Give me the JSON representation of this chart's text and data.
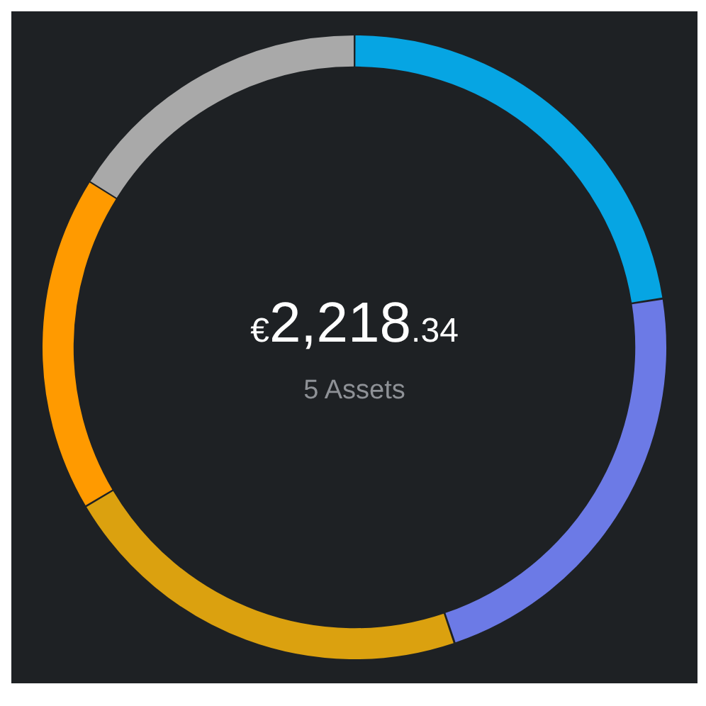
{
  "chart_data": {
    "type": "donut",
    "title": "€2,218.34",
    "subtitle": "5 Assets",
    "categories": [
      null,
      null,
      null,
      null,
      null
    ],
    "values": [
      22.5,
      22.3,
      21.7,
      17.4,
      16.1
    ],
    "colors": [
      "#06a5e3",
      "#6c7ae6",
      "#dba10f",
      "#ff9a00",
      "#a9a9a9"
    ],
    "legend": false
  }
}
